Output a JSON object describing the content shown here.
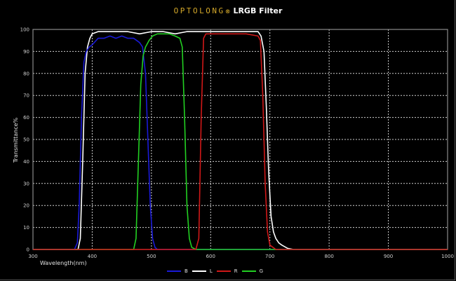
{
  "header": {
    "brand": "OPTOLONG",
    "registered": "®",
    "title": "LRGB Filter"
  },
  "colors": {
    "B": "#1a1ad8",
    "L": "#ffffff",
    "R": "#d01818",
    "G": "#22d022",
    "brand": "#d4a82a",
    "grid": "#cfcfcf"
  },
  "chart_data": {
    "type": "line",
    "title": "OPTOLONG® LRGB Filter",
    "xlabel": "Wavelength(nm)",
    "ylabel": "Transmittance%",
    "xlim": [
      300,
      1000
    ],
    "ylim": [
      0,
      100
    ],
    "xticks": [
      300,
      400,
      500,
      600,
      700,
      800,
      900,
      1000
    ],
    "yticks": [
      0,
      10,
      20,
      30,
      40,
      50,
      60,
      70,
      80,
      90,
      100
    ],
    "grid": true,
    "legend_position": "bottom-center",
    "legend": [
      "B",
      "L",
      "R",
      "G"
    ],
    "series": [
      {
        "name": "B",
        "color": "#1a1ad8",
        "x": [
          300,
          370,
          375,
          378,
          382,
          386,
          390,
          395,
          400,
          410,
          420,
          430,
          440,
          450,
          460,
          470,
          475,
          480,
          485,
          490,
          494,
          498,
          502,
          506,
          510,
          520,
          1000
        ],
        "y": [
          0,
          0,
          3,
          20,
          60,
          85,
          90,
          92,
          93,
          96,
          96,
          97,
          96,
          97,
          96,
          96,
          95,
          94,
          92,
          80,
          50,
          20,
          5,
          1,
          0,
          0,
          0
        ]
      },
      {
        "name": "L",
        "color": "#ffffff",
        "x": [
          300,
          376,
          380,
          384,
          388,
          392,
          396,
          400,
          410,
          420,
          440,
          460,
          480,
          500,
          520,
          540,
          560,
          580,
          600,
          620,
          640,
          660,
          680,
          685,
          690,
          694,
          698,
          702,
          706,
          710,
          715,
          720,
          730,
          740,
          1000
        ],
        "y": [
          0,
          0,
          5,
          40,
          80,
          92,
          96,
          98,
          99,
          99,
          99,
          99,
          98,
          99,
          99,
          98,
          99,
          99,
          99,
          99,
          99,
          99,
          99,
          97,
          90,
          65,
          35,
          15,
          8,
          5,
          3,
          2,
          0.5,
          0,
          0
        ]
      },
      {
        "name": "R",
        "color": "#d01818",
        "x": [
          300,
          575,
          580,
          584,
          588,
          592,
          600,
          620,
          640,
          660,
          680,
          684,
          688,
          692,
          696,
          700,
          710,
          1000
        ],
        "y": [
          0,
          0,
          5,
          60,
          96,
          98,
          98,
          98,
          98,
          98,
          97,
          95,
          70,
          30,
          8,
          2,
          0,
          0
        ]
      },
      {
        "name": "G",
        "color": "#22d022",
        "x": [
          300,
          470,
          474,
          478,
          482,
          486,
          490,
          496,
          502,
          510,
          520,
          530,
          540,
          548,
          552,
          556,
          560,
          564,
          568,
          575,
          1000
        ],
        "y": [
          0,
          0,
          5,
          40,
          75,
          88,
          92,
          95,
          97,
          98,
          98,
          98,
          97,
          96,
          92,
          60,
          20,
          5,
          1,
          0,
          0
        ]
      }
    ]
  }
}
